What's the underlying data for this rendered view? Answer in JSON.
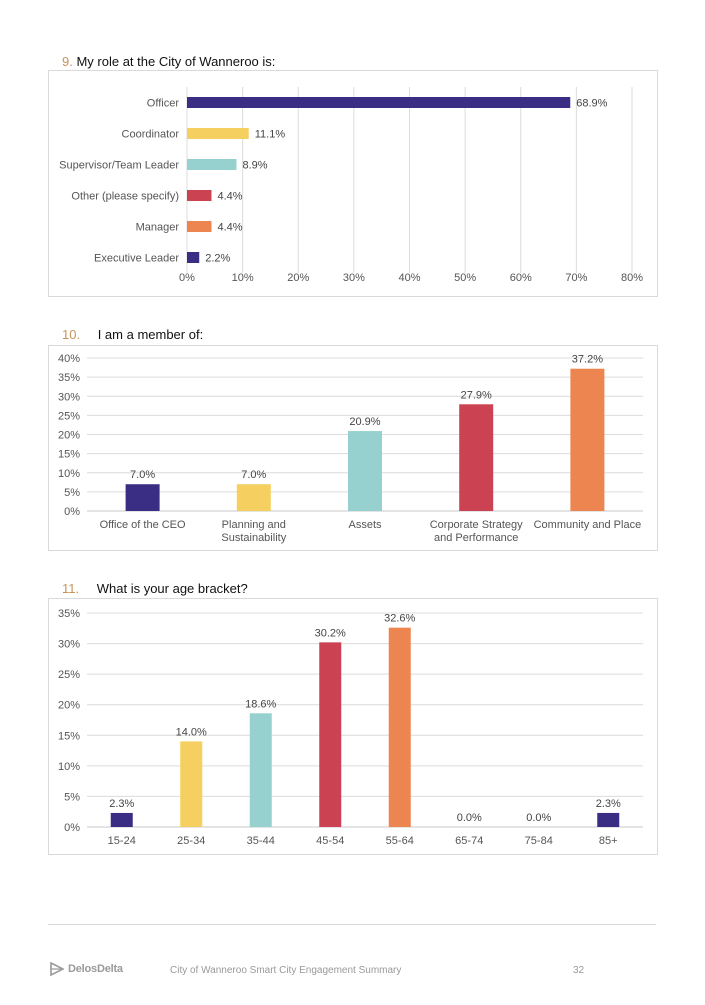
{
  "colors": {
    "navy": "#3a2d84",
    "yellow": "#f5d061",
    "teal": "#97d1cf",
    "red": "#cb4353",
    "orange": "#ec8550",
    "question_number": "#c8935a"
  },
  "questions": [
    {
      "number": "9.",
      "text": "My role at the City of Wanneroo is:"
    },
    {
      "number": "10.",
      "text": "I am a member of:"
    },
    {
      "number": "11.",
      "text": "What is your age bracket?"
    }
  ],
  "chart_data": [
    {
      "type": "bar",
      "orientation": "horizontal",
      "categories": [
        "Officer",
        "Coordinator",
        "Supervisor/Team Leader",
        "Other (please specify)",
        "Manager",
        "Executive Leader"
      ],
      "values": [
        68.9,
        11.1,
        8.9,
        4.4,
        4.4,
        2.2
      ],
      "data_labels": [
        "68.9%",
        "11.1%",
        "8.9%",
        "4.4%",
        "4.4%",
        "2.2%"
      ],
      "bar_colors": [
        "#3a2d84",
        "#f5d061",
        "#97d1cf",
        "#cb4353",
        "#ec8550",
        "#3a2d84"
      ],
      "xlim": [
        0,
        80
      ],
      "ticks": [
        "0%",
        "10%",
        "20%",
        "30%",
        "40%",
        "50%",
        "60%",
        "70%",
        "80%"
      ],
      "grid": "vertical"
    },
    {
      "type": "bar",
      "orientation": "vertical",
      "categories": [
        [
          "Office of the CEO"
        ],
        [
          "Planning and",
          "Sustainability"
        ],
        [
          "Assets"
        ],
        [
          "Corporate Strategy",
          "and Performance"
        ],
        [
          "Community and Place"
        ]
      ],
      "values": [
        7.0,
        7.0,
        20.9,
        27.9,
        37.2
      ],
      "data_labels": [
        "7.0%",
        "7.0%",
        "20.9%",
        "27.9%",
        "37.2%"
      ],
      "bar_colors": [
        "#3a2d84",
        "#f5d061",
        "#97d1cf",
        "#cb4353",
        "#ec8550"
      ],
      "ylim": [
        0,
        40
      ],
      "ticks": [
        "0%",
        "5%",
        "10%",
        "15%",
        "20%",
        "25%",
        "30%",
        "35%",
        "40%"
      ],
      "grid": "horizontal"
    },
    {
      "type": "bar",
      "orientation": "vertical",
      "categories": [
        [
          "15-24"
        ],
        [
          "25-34"
        ],
        [
          "35-44"
        ],
        [
          "45-54"
        ],
        [
          "55-64"
        ],
        [
          "65-74"
        ],
        [
          "75-84"
        ],
        [
          "85+"
        ]
      ],
      "values": [
        2.3,
        14.0,
        18.6,
        30.2,
        32.6,
        0.0,
        0.0,
        2.3
      ],
      "data_labels": [
        "2.3%",
        "14.0%",
        "18.6%",
        "30.2%",
        "32.6%",
        "0.0%",
        "0.0%",
        "2.3%"
      ],
      "bar_colors": [
        "#3a2d84",
        "#f5d061",
        "#97d1cf",
        "#cb4353",
        "#ec8550",
        "#3a2d84",
        "#f5d061",
        "#3a2d84"
      ],
      "ylim": [
        0,
        35
      ],
      "ticks": [
        "0%",
        "5%",
        "10%",
        "15%",
        "20%",
        "25%",
        "30%",
        "35%"
      ],
      "grid": "horizontal"
    }
  ],
  "footer": {
    "logo_text": "DelosDelta",
    "document_title": "City of Wanneroo Smart City Engagement Summary",
    "page_number": "32"
  }
}
